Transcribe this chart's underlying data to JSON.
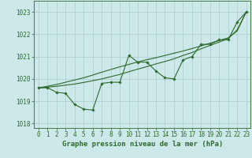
{
  "title": "Graphe pression niveau de la mer (hPa)",
  "bg_color": "#cce8e8",
  "grid_color": "#b0d0d0",
  "line_color": "#2d6a2d",
  "x_values": [
    0,
    1,
    2,
    3,
    4,
    5,
    6,
    7,
    8,
    9,
    10,
    11,
    12,
    13,
    14,
    15,
    16,
    17,
    18,
    19,
    20,
    21,
    22,
    23
  ],
  "y_main": [
    1019.6,
    1019.6,
    1019.4,
    1019.35,
    1018.85,
    1018.65,
    1018.6,
    1019.8,
    1019.85,
    1019.85,
    1021.05,
    1020.75,
    1020.75,
    1020.35,
    1020.05,
    1020.0,
    1020.85,
    1021.0,
    1021.55,
    1021.55,
    1021.75,
    1021.75,
    1022.55,
    1023.0
  ],
  "y_smooth1": [
    1019.6,
    1019.63,
    1019.67,
    1019.72,
    1019.77,
    1019.84,
    1019.92,
    1020.0,
    1020.1,
    1020.2,
    1020.32,
    1020.44,
    1020.55,
    1020.67,
    1020.78,
    1020.9,
    1021.05,
    1021.18,
    1021.35,
    1021.5,
    1021.65,
    1021.8,
    1022.2,
    1023.0
  ],
  "y_smooth2": [
    1019.6,
    1019.67,
    1019.75,
    1019.85,
    1019.95,
    1020.05,
    1020.17,
    1020.3,
    1020.42,
    1020.54,
    1020.65,
    1020.76,
    1020.86,
    1020.95,
    1021.05,
    1021.15,
    1021.25,
    1021.36,
    1021.48,
    1021.6,
    1021.72,
    1021.84,
    1022.15,
    1023.0
  ],
  "ylim": [
    1017.8,
    1023.5
  ],
  "yticks": [
    1018,
    1019,
    1020,
    1021,
    1022,
    1023
  ],
  "xlim": [
    -0.5,
    23.5
  ],
  "xticks": [
    0,
    1,
    2,
    3,
    4,
    5,
    6,
    7,
    8,
    9,
    10,
    11,
    12,
    13,
    14,
    15,
    16,
    17,
    18,
    19,
    20,
    21,
    22,
    23
  ],
  "tick_fontsize": 5.5,
  "title_fontsize": 6.5
}
